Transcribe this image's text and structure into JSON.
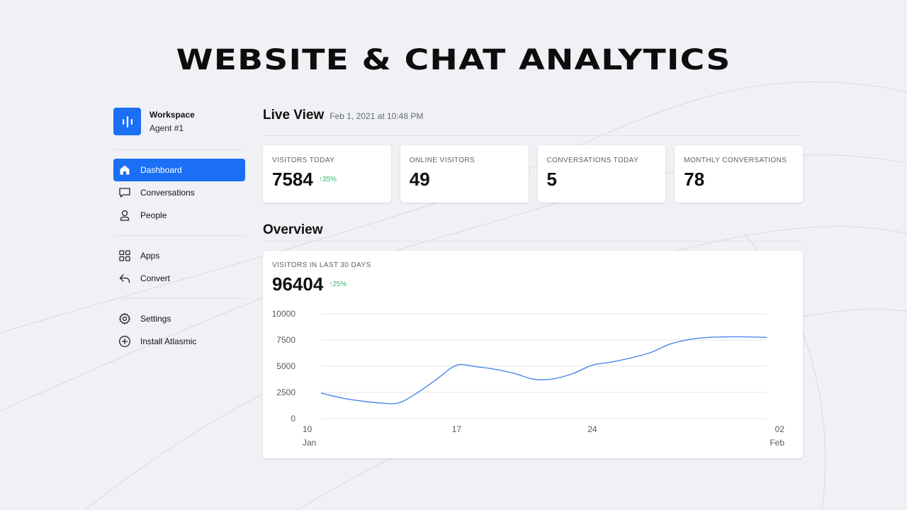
{
  "hero": {
    "title": "WEBSITE & CHAT ANALYTICS"
  },
  "workspace": {
    "title": "Workspace",
    "subtitle": "Agent #1",
    "logo_icon": "audio-bars-icon",
    "logo_color": "#1a6ff5"
  },
  "sidebar": {
    "groups": [
      [
        {
          "label": "Dashboard",
          "icon": "home-icon",
          "active": true
        },
        {
          "label": "Conversations",
          "icon": "chat-bubble-icon",
          "active": false
        },
        {
          "label": "People",
          "icon": "person-icon",
          "active": false
        }
      ],
      [
        {
          "label": "Apps",
          "icon": "grid-icon",
          "active": false
        },
        {
          "label": "Convert",
          "icon": "reply-icon",
          "active": false
        }
      ],
      [
        {
          "label": "Settings",
          "icon": "gear-icon",
          "active": false
        },
        {
          "label": "Install Atlasmic",
          "icon": "plus-circle-icon",
          "active": false
        }
      ]
    ]
  },
  "live_view": {
    "title": "Live View",
    "date": "Feb 1, 2021 at 10:48 PM",
    "stats": [
      {
        "label": "VISITORS TODAY",
        "value": "7584",
        "delta": "↑35%"
      },
      {
        "label": "ONLINE VISITORS",
        "value": "49",
        "delta": ""
      },
      {
        "label": "CONVERSATIONS TODAY",
        "value": "5",
        "delta": ""
      },
      {
        "label": "MONTHLY CONVERSATIONS",
        "value": "78",
        "delta": ""
      }
    ]
  },
  "overview": {
    "title": "Overview",
    "chart_label": "VISITORS IN LAST 30 DAYS",
    "total": "96404",
    "delta": "↑25%"
  },
  "colors": {
    "accent": "#1a6ff5",
    "positive": "#2ebd6b",
    "line": "#4a86e8"
  },
  "chart_data": {
    "type": "line",
    "title": "",
    "xlabel": "",
    "ylabel": "",
    "ylim": [
      0,
      10000
    ],
    "yticks": [
      0,
      2500,
      5000,
      7500,
      10000
    ],
    "xlim": [
      "2021-01-10",
      "2021-02-02"
    ],
    "xticks": [
      {
        "date": "2021-01-10",
        "label": "10",
        "sublabel": "Jan"
      },
      {
        "date": "2021-01-17",
        "label": "17",
        "sublabel": ""
      },
      {
        "date": "2021-01-24",
        "label": "24",
        "sublabel": ""
      },
      {
        "date": "2021-02-02",
        "label": "02",
        "sublabel": "Feb"
      }
    ],
    "grid": true,
    "series": [
      {
        "x": [
          "2021-01-10",
          "2021-01-11",
          "2021-01-12",
          "2021-01-13",
          "2021-01-14",
          "2021-01-15",
          "2021-01-16",
          "2021-01-17",
          "2021-01-18",
          "2021-01-19",
          "2021-01-20",
          "2021-01-21",
          "2021-01-22",
          "2021-01-23",
          "2021-01-24",
          "2021-01-25",
          "2021-01-26",
          "2021-01-27",
          "2021-01-28",
          "2021-01-29",
          "2021-01-30",
          "2021-01-31",
          "2021-02-01",
          "2021-02-02"
        ],
        "values": [
          2450,
          2000,
          1700,
          1500,
          1500,
          2500,
          3800,
          5100,
          4950,
          4700,
          4300,
          3750,
          3800,
          4300,
          5100,
          5400,
          5800,
          6300,
          7100,
          7550,
          7750,
          7800,
          7800,
          7750
        ]
      }
    ]
  }
}
